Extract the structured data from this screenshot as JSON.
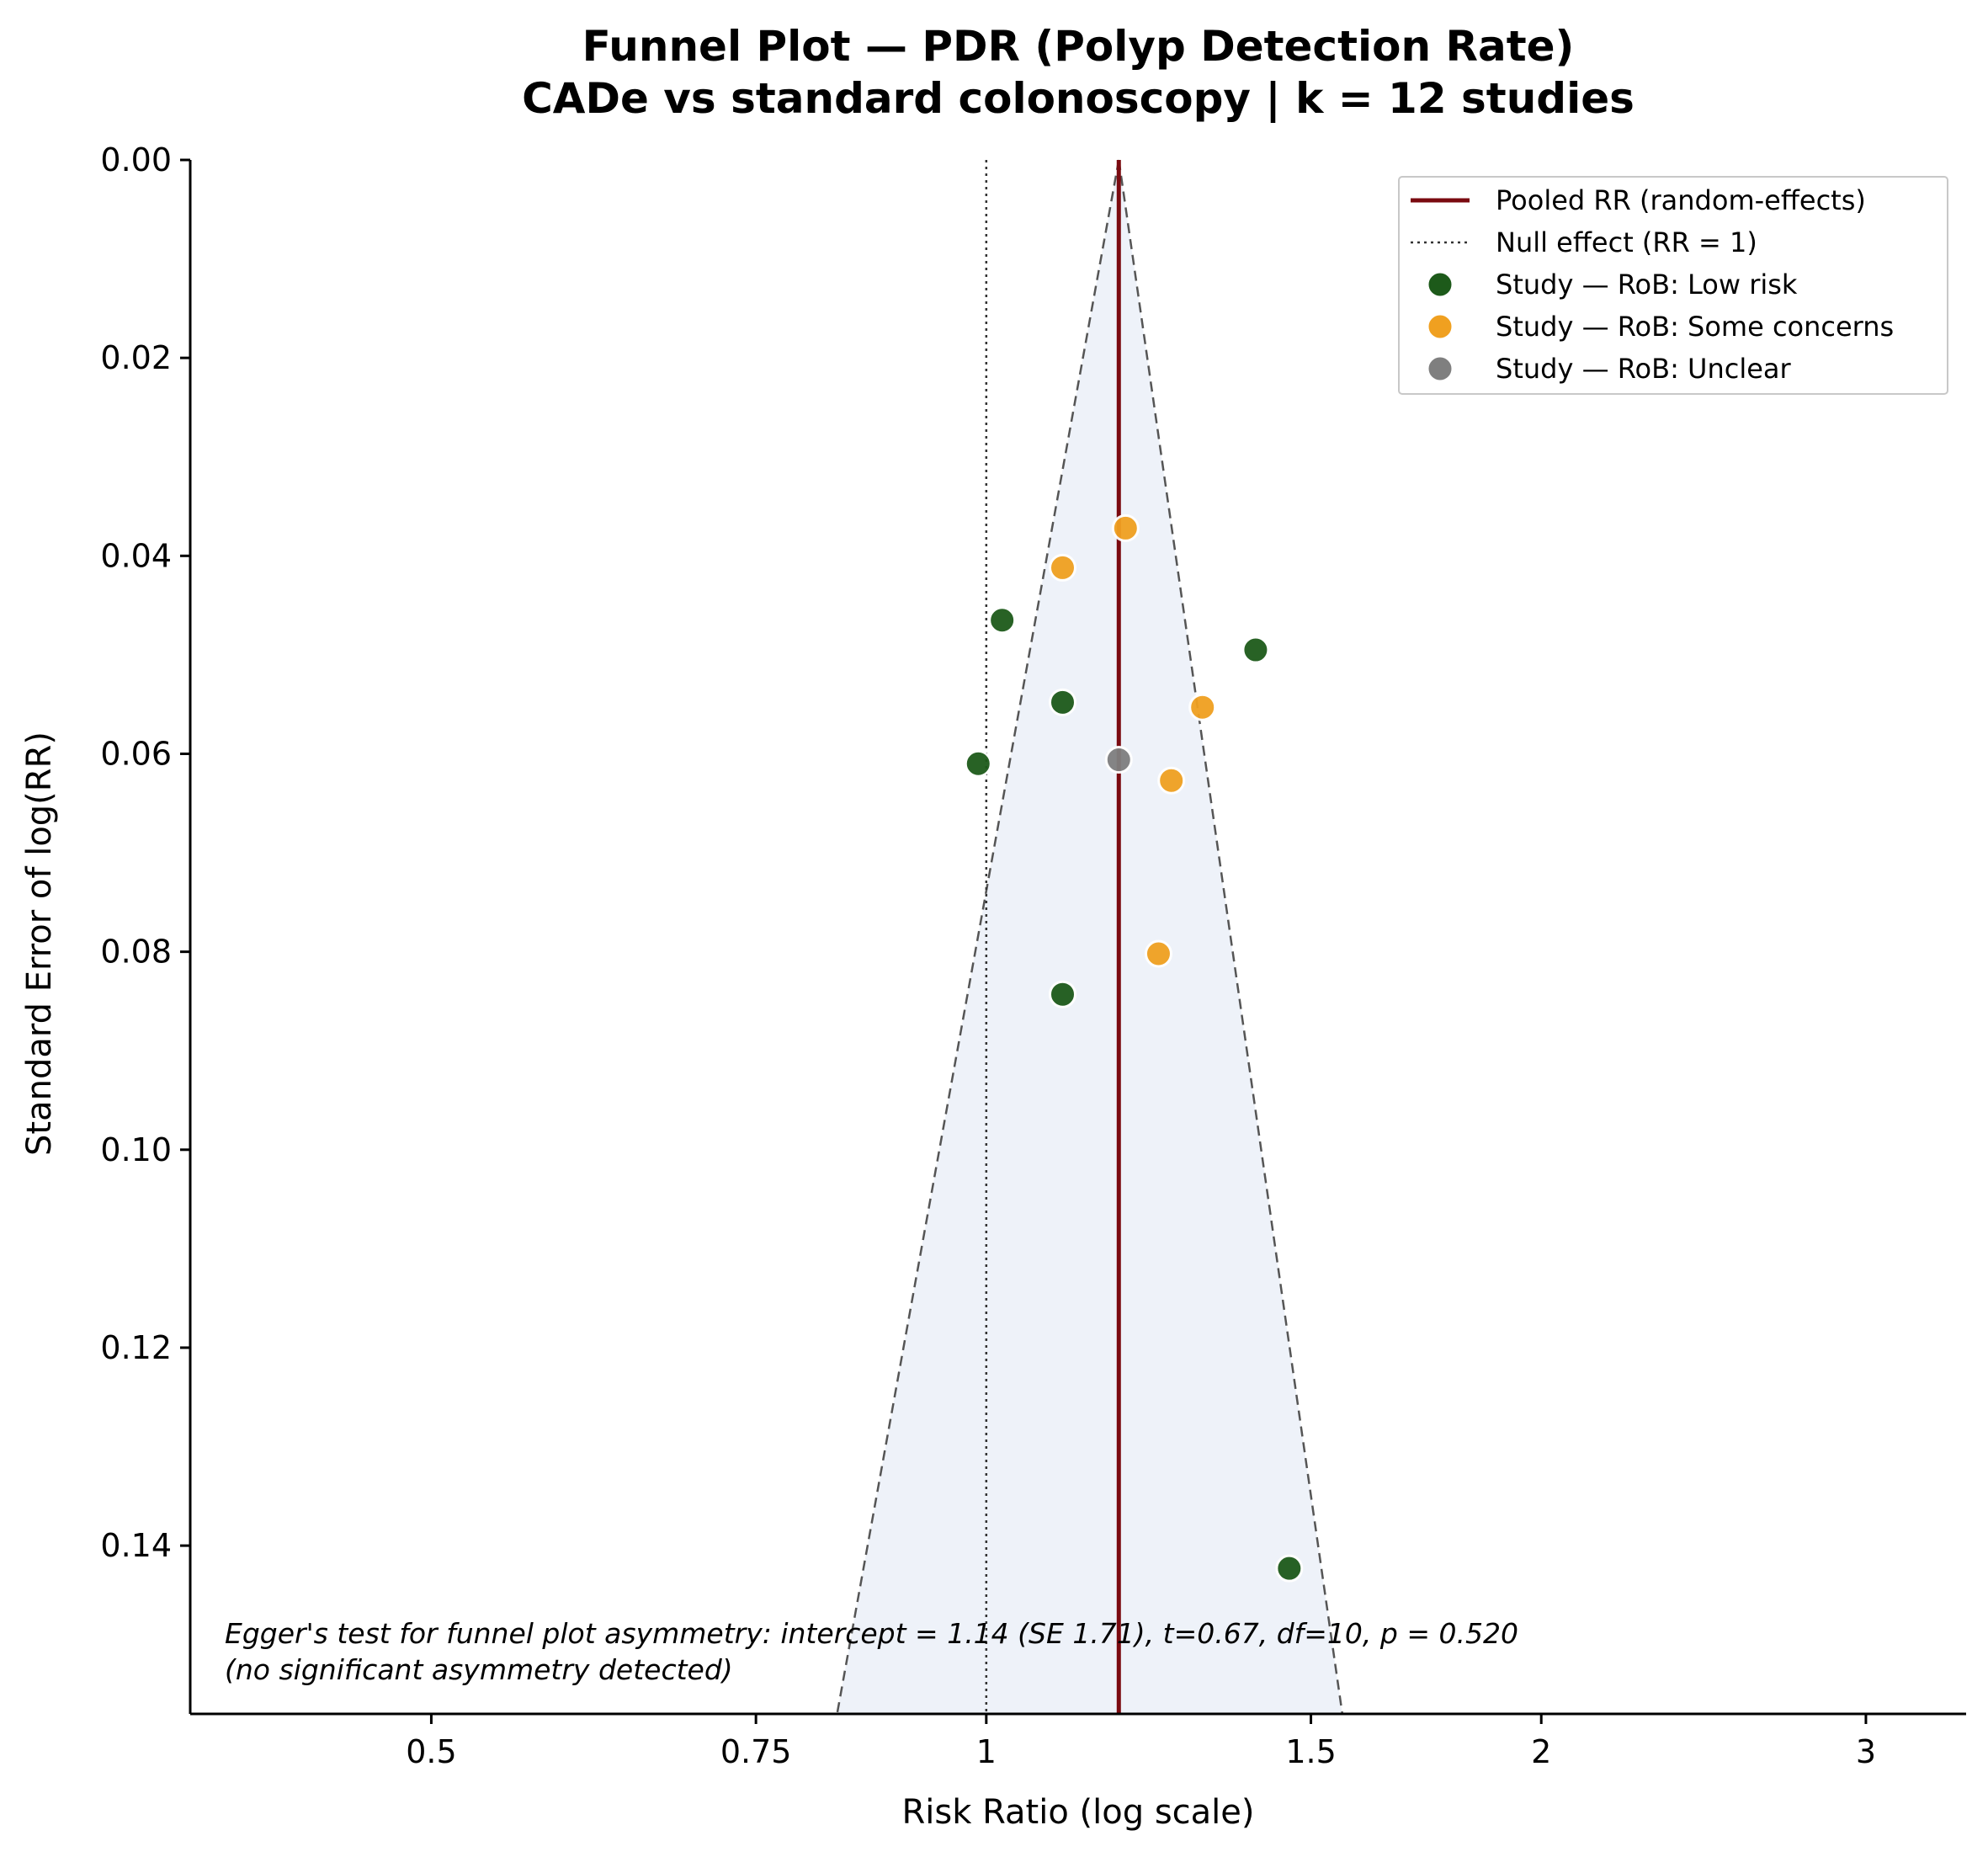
{
  "chart_data": {
    "type": "scatter",
    "title": "Funnel Plot — PDR (Polyp Detection Rate)",
    "subtitle": "CADe vs standard colonoscopy | k = 12 studies",
    "xlabel": "Risk Ratio (log scale)",
    "ylabel": "Standard Error of log(RR)",
    "x_scale": "log",
    "xlim": [
      0.37,
      3.4
    ],
    "ylim": [
      0.157,
      0.0
    ],
    "y_inverted": true,
    "x_ticks": [
      0.5,
      0.75,
      1,
      1.5,
      2,
      3
    ],
    "x_tick_labels": [
      "0.5",
      "0.75",
      "1",
      "1.5",
      "2",
      "3"
    ],
    "y_ticks": [
      0.0,
      0.02,
      0.04,
      0.06,
      0.08,
      0.1,
      0.12,
      0.14
    ],
    "y_tick_labels": [
      "0.00",
      "0.02",
      "0.04",
      "0.06",
      "0.08",
      "0.10",
      "0.12",
      "0.14"
    ],
    "pooled_rr": 1.18,
    "null_rr": 1,
    "funnel": {
      "apex_rr": 1.18,
      "bottom_se": 0.157,
      "bottom_left_rr": 0.83,
      "bottom_right_rr": 1.56
    },
    "colors": {
      "pooled": "#7a0a10",
      "null": "#333333",
      "funnel_edge": "#555555",
      "funnel_fill": "#eef2f9",
      "Low risk": "#1d5a1a",
      "Some concerns": "#f0a020",
      "Unclear": "#7f7f7f"
    },
    "series": [
      {
        "name": "Study — RoB: Low risk",
        "category": "Low risk",
        "points": [
          {
            "rr": 1.02,
            "se": 0.0465
          },
          {
            "rr": 1.4,
            "se": 0.0495
          },
          {
            "rr": 1.1,
            "se": 0.0548
          },
          {
            "rr": 0.99,
            "se": 0.061
          },
          {
            "rr": 1.1,
            "se": 0.0843
          },
          {
            "rr": 1.46,
            "se": 0.1423
          }
        ]
      },
      {
        "name": "Study — RoB: Some concerns",
        "category": "Some concerns",
        "points": [
          {
            "rr": 1.19,
            "se": 0.0372
          },
          {
            "rr": 1.1,
            "se": 0.0412
          },
          {
            "rr": 1.31,
            "se": 0.0553
          },
          {
            "rr": 1.26,
            "se": 0.0627
          },
          {
            "rr": 1.24,
            "se": 0.0802
          }
        ]
      },
      {
        "name": "Study — RoB: Unclear",
        "category": "Unclear",
        "points": [
          {
            "rr": 1.18,
            "se": 0.0606
          }
        ]
      }
    ],
    "legend": {
      "placement": "top-right",
      "entries": [
        {
          "label": "Pooled RR (random-effects)",
          "kind": "solid-line",
          "color_key": "pooled"
        },
        {
          "label": "Null effect (RR = 1)",
          "kind": "dotted-line",
          "color_key": "null"
        },
        {
          "label": "Study — RoB: Low risk",
          "kind": "marker",
          "color_key": "Low risk"
        },
        {
          "label": "Study — RoB: Some concerns",
          "kind": "marker",
          "color_key": "Some concerns"
        },
        {
          "label": "Study — RoB: Unclear",
          "kind": "marker",
          "color_key": "Unclear"
        }
      ]
    },
    "annotation": {
      "line1": "Egger's test for funnel plot asymmetry: intercept = 1.14 (SE 1.71), t=0.67, df=10, p = 0.520",
      "line2": "(no significant asymmetry detected)",
      "placement": "bottom-left"
    },
    "grid": false
  }
}
